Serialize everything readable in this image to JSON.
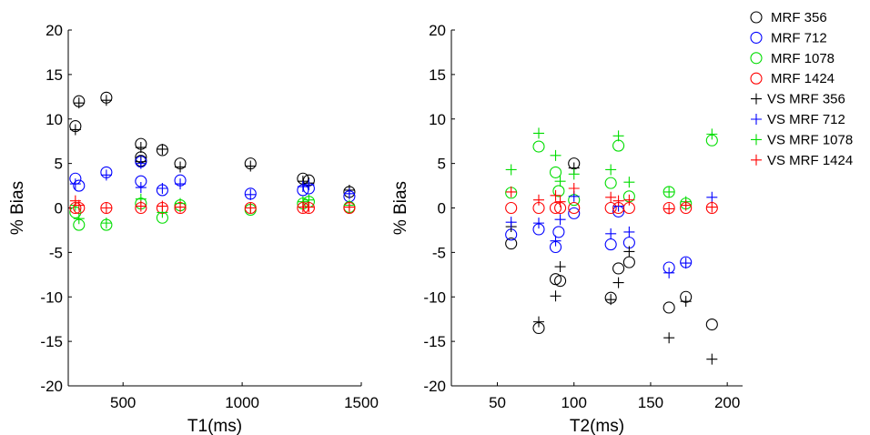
{
  "chart_data": [
    {
      "type": "scatter",
      "xlabel": "T1(ms)",
      "ylabel": "% Bias",
      "xlim": [
        270,
        1500
      ],
      "ylim": [
        -20,
        20
      ],
      "xticks": [
        500,
        1000,
        1500
      ],
      "yticks": [
        -20,
        -15,
        -10,
        -5,
        0,
        5,
        10,
        15,
        20
      ],
      "series": [
        {
          "name": "MRF 356",
          "marker": "circle",
          "color": "#000000",
          "points": [
            [
              300,
              9.2
            ],
            [
              315,
              12.0
            ],
            [
              430,
              12.4
            ],
            [
              575,
              7.2
            ],
            [
              575,
              5.7
            ],
            [
              575,
              5.3
            ],
            [
              665,
              6.5
            ],
            [
              740,
              5.0
            ],
            [
              1035,
              5.0
            ],
            [
              1255,
              3.3
            ],
            [
              1280,
              3.1
            ],
            [
              1450,
              1.8
            ]
          ]
        },
        {
          "name": "MRF 712",
          "marker": "circle",
          "color": "#0000ff",
          "points": [
            [
              300,
              3.3
            ],
            [
              315,
              2.5
            ],
            [
              430,
              4.0
            ],
            [
              575,
              3.0
            ],
            [
              575,
              5.2
            ],
            [
              665,
              2.0
            ],
            [
              740,
              3.1
            ],
            [
              1035,
              1.6
            ],
            [
              1255,
              2.0
            ],
            [
              1280,
              2.2
            ],
            [
              1450,
              1.3
            ]
          ]
        },
        {
          "name": "MRF 1078",
          "marker": "circle",
          "color": "#00dd00",
          "points": [
            [
              300,
              -0.5
            ],
            [
              315,
              -1.9
            ],
            [
              430,
              -1.9
            ],
            [
              575,
              0.5
            ],
            [
              665,
              -1.1
            ],
            [
              740,
              0.3
            ],
            [
              1035,
              -0.2
            ],
            [
              1255,
              0.5
            ],
            [
              1280,
              0.7
            ],
            [
              1450,
              0.1
            ]
          ]
        },
        {
          "name": "MRF 1424",
          "marker": "circle",
          "color": "#ff0000",
          "points": [
            [
              300,
              0.0
            ],
            [
              315,
              0.0
            ],
            [
              430,
              0.0
            ],
            [
              575,
              0.0
            ],
            [
              665,
              0.0
            ],
            [
              740,
              0.0
            ],
            [
              1035,
              0.0
            ],
            [
              1255,
              0.0
            ],
            [
              1280,
              0.0
            ],
            [
              1450,
              0.0
            ]
          ]
        },
        {
          "name": "VS MRF 356",
          "marker": "plus",
          "color": "#000000",
          "points": [
            [
              300,
              8.8
            ],
            [
              315,
              11.8
            ],
            [
              430,
              12.1
            ],
            [
              575,
              6.8
            ],
            [
              575,
              5.2
            ],
            [
              665,
              6.6
            ],
            [
              740,
              4.6
            ],
            [
              1035,
              4.7
            ],
            [
              1255,
              3.0
            ],
            [
              1280,
              2.8
            ],
            [
              1450,
              2.0
            ]
          ]
        },
        {
          "name": "VS MRF 712",
          "marker": "plus",
          "color": "#0000ff",
          "points": [
            [
              300,
              2.7
            ],
            [
              430,
              3.7
            ],
            [
              575,
              2.3
            ],
            [
              575,
              5.0
            ],
            [
              665,
              2.2
            ],
            [
              740,
              2.7
            ],
            [
              1035,
              1.5
            ],
            [
              1255,
              2.4
            ],
            [
              1280,
              2.6
            ],
            [
              1450,
              1.6
            ]
          ]
        },
        {
          "name": "VS MRF 1078",
          "marker": "plus",
          "color": "#00dd00",
          "points": [
            [
              300,
              0.3
            ],
            [
              315,
              -1.2
            ],
            [
              430,
              -1.7
            ],
            [
              575,
              1.0
            ],
            [
              665,
              -0.5
            ],
            [
              740,
              0.5
            ],
            [
              1035,
              0.0
            ],
            [
              1255,
              0.7
            ],
            [
              1280,
              0.9
            ],
            [
              1450,
              0.3
            ]
          ]
        },
        {
          "name": "VS MRF 1424",
          "marker": "plus",
          "color": "#ff0000",
          "points": [
            [
              300,
              0.8
            ],
            [
              315,
              0.3
            ],
            [
              430,
              0.0
            ],
            [
              575,
              0.2
            ],
            [
              665,
              0.2
            ],
            [
              740,
              0.1
            ],
            [
              1035,
              0.0
            ],
            [
              1255,
              0.1
            ],
            [
              1280,
              0.1
            ],
            [
              1450,
              0.1
            ]
          ]
        }
      ]
    },
    {
      "type": "scatter",
      "xlabel": "T2(ms)",
      "ylabel": "% Bias",
      "xlim": [
        20,
        210
      ],
      "ylim": [
        -20,
        20
      ],
      "xticks": [
        50,
        100,
        150,
        200
      ],
      "yticks": [
        -20,
        -15,
        -10,
        -5,
        0,
        5,
        10,
        15,
        20
      ],
      "series": [
        {
          "name": "MRF 356",
          "marker": "circle",
          "color": "#000000",
          "points": [
            [
              59,
              -4.0
            ],
            [
              77,
              -13.5
            ],
            [
              88,
              -8.0
            ],
            [
              91,
              -8.2
            ],
            [
              100,
              5.0
            ],
            [
              124,
              -10.1
            ],
            [
              129,
              -6.8
            ],
            [
              136,
              -6.1
            ],
            [
              162,
              -11.2
            ],
            [
              173,
              -10.0
            ],
            [
              190,
              -13.1
            ]
          ]
        },
        {
          "name": "MRF 712",
          "marker": "circle",
          "color": "#0000ff",
          "points": [
            [
              59,
              -3.0
            ],
            [
              77,
              -2.4
            ],
            [
              88,
              -4.4
            ],
            [
              90,
              -2.7
            ],
            [
              100,
              -0.6
            ],
            [
              124,
              -4.1
            ],
            [
              129,
              -0.4
            ],
            [
              136,
              -3.9
            ],
            [
              162,
              -6.7
            ],
            [
              173,
              -6.1
            ]
          ]
        },
        {
          "name": "MRF 1078",
          "marker": "circle",
          "color": "#00dd00",
          "points": [
            [
              59,
              1.7
            ],
            [
              77,
              6.9
            ],
            [
              88,
              4.0
            ],
            [
              90,
              1.9
            ],
            [
              100,
              0.9
            ],
            [
              124,
              2.8
            ],
            [
              129,
              7.0
            ],
            [
              136,
              1.3
            ],
            [
              162,
              1.8
            ],
            [
              173,
              0.5
            ],
            [
              190,
              7.6
            ]
          ]
        },
        {
          "name": "MRF 1424",
          "marker": "circle",
          "color": "#ff0000",
          "points": [
            [
              59,
              0.0
            ],
            [
              77,
              0.0
            ],
            [
              88,
              0.0
            ],
            [
              91,
              0.0
            ],
            [
              100,
              0.0
            ],
            [
              124,
              0.0
            ],
            [
              129,
              0.0
            ],
            [
              136,
              0.0
            ],
            [
              162,
              0.0
            ],
            [
              173,
              0.0
            ],
            [
              190,
              0.0
            ]
          ]
        },
        {
          "name": "VS MRF 356",
          "marker": "plus",
          "color": "#000000",
          "points": [
            [
              59,
              -2.1
            ],
            [
              77,
              -12.8
            ],
            [
              88,
              -9.9
            ],
            [
              91,
              -6.6
            ],
            [
              100,
              4.5
            ],
            [
              124,
              -10.3
            ],
            [
              129,
              -8.4
            ],
            [
              136,
              -4.9
            ],
            [
              162,
              -14.6
            ],
            [
              173,
              -10.5
            ],
            [
              190,
              -17.0
            ]
          ]
        },
        {
          "name": "VS MRF 712",
          "marker": "plus",
          "color": "#0000ff",
          "points": [
            [
              59,
              -1.6
            ],
            [
              77,
              -1.7
            ],
            [
              88,
              -3.7
            ],
            [
              91,
              -1.3
            ],
            [
              100,
              1.3
            ],
            [
              124,
              -2.9
            ],
            [
              129,
              0.2
            ],
            [
              136,
              -2.7
            ],
            [
              162,
              -7.3
            ],
            [
              173,
              -6.2
            ],
            [
              190,
              1.2
            ]
          ]
        },
        {
          "name": "VS MRF 1078",
          "marker": "plus",
          "color": "#00dd00",
          "points": [
            [
              59,
              4.3
            ],
            [
              77,
              8.4
            ],
            [
              88,
              5.9
            ],
            [
              91,
              3.0
            ],
            [
              100,
              3.8
            ],
            [
              124,
              4.3
            ],
            [
              129,
              8.1
            ],
            [
              136,
              2.9
            ],
            [
              162,
              1.8
            ],
            [
              173,
              0.7
            ],
            [
              190,
              8.3
            ]
          ]
        },
        {
          "name": "VS MRF 1424",
          "marker": "plus",
          "color": "#ff0000",
          "points": [
            [
              59,
              1.8
            ],
            [
              77,
              0.9
            ],
            [
              88,
              1.4
            ],
            [
              91,
              0.7
            ],
            [
              100,
              2.2
            ],
            [
              124,
              1.2
            ],
            [
              129,
              0.8
            ],
            [
              136,
              0.9
            ],
            [
              162,
              -0.1
            ],
            [
              173,
              0.3
            ],
            [
              190,
              0.1
            ]
          ]
        }
      ]
    }
  ],
  "legend": {
    "position": "top-right",
    "entries": [
      {
        "label": "MRF 356",
        "marker": "circle",
        "color": "#000000"
      },
      {
        "label": "MRF 712",
        "marker": "circle",
        "color": "#0000ff"
      },
      {
        "label": "MRF 1078",
        "marker": "circle",
        "color": "#00dd00"
      },
      {
        "label": "MRF 1424",
        "marker": "circle",
        "color": "#ff0000"
      },
      {
        "label": "VS MRF 356",
        "marker": "plus",
        "color": "#000000"
      },
      {
        "label": "VS MRF 712",
        "marker": "plus",
        "color": "#0000ff"
      },
      {
        "label": "VS MRF 1078",
        "marker": "plus",
        "color": "#00dd00"
      },
      {
        "label": "VS MRF 1424",
        "marker": "plus",
        "color": "#ff0000"
      }
    ]
  }
}
